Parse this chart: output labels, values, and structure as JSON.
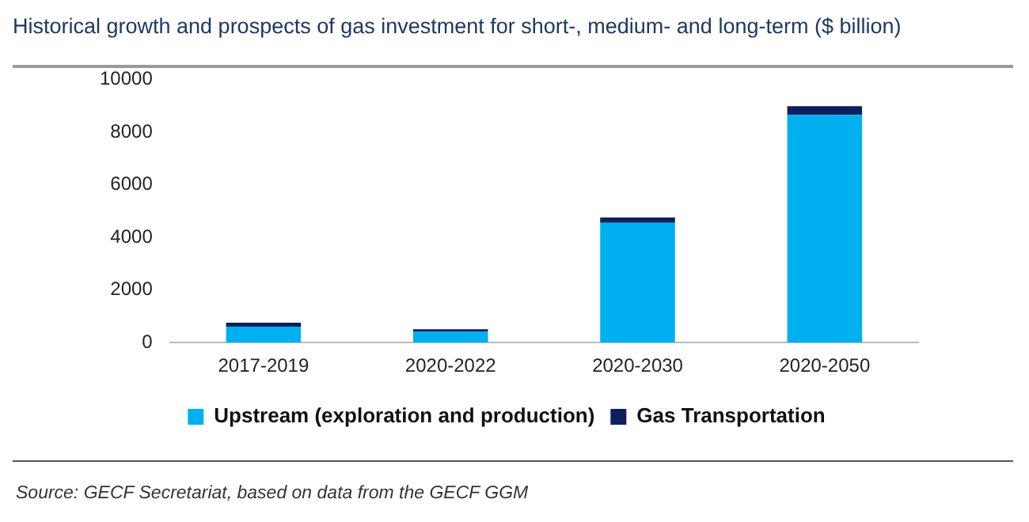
{
  "chart_data": {
    "type": "bar",
    "title": "Historical growth and prospects of gas investment for short-, medium- and long-term ($ billion)",
    "categories": [
      "2017-2019",
      "2020-2022",
      "2020-2030",
      "2020-2050"
    ],
    "stacked": true,
    "series": [
      {
        "name": "Upstream (exploration and production)",
        "color": "#00b0f0",
        "values": [
          610,
          430,
          4550,
          8650
        ]
      },
      {
        "name": "Gas Transportation",
        "color": "#0d1f5c",
        "values": [
          150,
          80,
          200,
          330
        ]
      }
    ],
    "ylim": [
      0,
      10000
    ],
    "yticks": [
      0,
      2000,
      4000,
      6000,
      8000,
      10000
    ],
    "grid": false,
    "legend": "bottom",
    "annotations": [
      "Source: GECF Secretariat, based on data from the GECF GGM"
    ]
  }
}
